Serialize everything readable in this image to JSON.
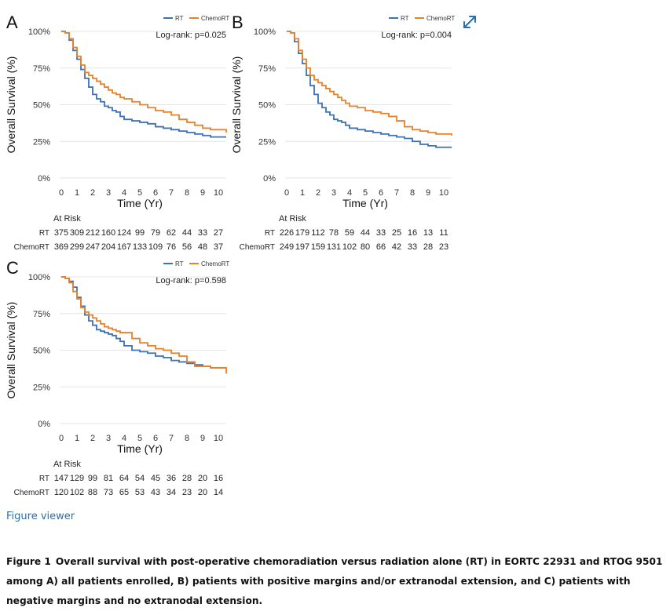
{
  "figure_viewer_label": "Figure viewer",
  "caption": {
    "label": "Figure 1",
    "text": "Overall survival with post-operative chemoradiation versus radiation alone (RT) in EORTC 22931 and RTOG 9501 among A) all patients enrolled, B) patients with positive margins and/or extranodal extension, and C) patients with negative margins and no extranodal extension."
  },
  "colors": {
    "rt": "#3d72b4",
    "chemort": "#e8822a"
  },
  "expand_icon": "expand-arrows-icon",
  "chart_data": [
    {
      "type": "line",
      "panel": "A",
      "title": "",
      "xlabel": "Time (Yr)",
      "ylabel": "Overall Survival (%)",
      "xlim": [
        0,
        10
      ],
      "ylim": [
        0,
        100
      ],
      "x_ticks": [
        "0",
        "1",
        "2",
        "3",
        "4",
        "5",
        "6",
        "7",
        "8",
        "9",
        "10"
      ],
      "y_ticks": [
        "0%",
        "25%",
        "50%",
        "75%",
        "100%"
      ],
      "legend": [
        "RT",
        "ChemoRT"
      ],
      "legend_position": "top-right",
      "annotation": "Log-rank: p=0.025",
      "series": [
        {
          "name": "RT",
          "x": [
            0,
            0.25,
            0.5,
            0.75,
            1,
            1.25,
            1.5,
            1.75,
            2,
            2.25,
            2.5,
            2.75,
            3,
            3.25,
            3.5,
            3.75,
            4,
            4.5,
            5,
            5.5,
            6,
            6.5,
            7,
            7.5,
            8,
            8.5,
            9,
            9.5,
            10.5
          ],
          "values": [
            100,
            99,
            94,
            87,
            81,
            74,
            68,
            62,
            57,
            54,
            52,
            49,
            48,
            46,
            45,
            42,
            40,
            39,
            38,
            37,
            35,
            34,
            33,
            32,
            31,
            30,
            29,
            28,
            28
          ]
        },
        {
          "name": "ChemoRT",
          "x": [
            0,
            0.25,
            0.5,
            0.75,
            1,
            1.25,
            1.5,
            1.75,
            2,
            2.25,
            2.5,
            2.75,
            3,
            3.25,
            3.5,
            3.75,
            4,
            4.5,
            5,
            5.5,
            6,
            6.5,
            7,
            7.5,
            8,
            8.5,
            9,
            9.5,
            10.5
          ],
          "values": [
            100,
            99,
            95,
            89,
            83,
            77,
            72,
            70,
            68,
            66,
            64,
            62,
            60,
            58,
            57,
            55,
            54,
            52,
            50,
            48,
            46,
            45,
            43,
            40,
            38,
            36,
            34,
            33,
            31
          ]
        }
      ],
      "at_risk": {
        "title": "At Risk",
        "rows": [
          {
            "label": "RT",
            "values": [
              "375",
              "309",
              "212",
              "160",
              "124",
              "99",
              "79",
              "62",
              "44",
              "33",
              "27"
            ]
          },
          {
            "label": "ChemoRT",
            "values": [
              "369",
              "299",
              "247",
              "204",
              "167",
              "133",
              "109",
              "76",
              "56",
              "48",
              "37"
            ]
          }
        ]
      }
    },
    {
      "type": "line",
      "panel": "B",
      "title": "",
      "xlabel": "Time (Yr)",
      "ylabel": "Overall Survival (%)",
      "xlim": [
        0,
        10
      ],
      "ylim": [
        0,
        100
      ],
      "x_ticks": [
        "0",
        "1",
        "2",
        "3",
        "4",
        "5",
        "6",
        "7",
        "8",
        "9",
        "10"
      ],
      "y_ticks": [
        "0%",
        "25%",
        "50%",
        "75%",
        "100%"
      ],
      "legend": [
        "RT",
        "ChemoRT"
      ],
      "legend_position": "top-right",
      "annotation": "Log-rank: p=0.004",
      "series": [
        {
          "name": "RT",
          "x": [
            0,
            0.25,
            0.5,
            0.75,
            1,
            1.25,
            1.5,
            1.75,
            2,
            2.25,
            2.5,
            2.75,
            3,
            3.25,
            3.5,
            3.75,
            4,
            4.5,
            5,
            5.5,
            6,
            6.5,
            7,
            7.5,
            8,
            8.5,
            9,
            9.5,
            10.5
          ],
          "values": [
            100,
            99,
            93,
            85,
            78,
            70,
            63,
            57,
            51,
            48,
            45,
            43,
            40,
            39,
            38,
            36,
            34,
            33,
            32,
            31,
            30,
            29,
            28,
            27,
            25,
            23,
            22,
            21,
            21
          ]
        },
        {
          "name": "ChemoRT",
          "x": [
            0,
            0.25,
            0.5,
            0.75,
            1,
            1.25,
            1.5,
            1.75,
            2,
            2.25,
            2.5,
            2.75,
            3,
            3.25,
            3.5,
            3.75,
            4,
            4.5,
            5,
            5.5,
            6,
            6.5,
            7,
            7.5,
            8,
            8.5,
            9,
            9.5,
            10.5
          ],
          "values": [
            100,
            99,
            95,
            87,
            81,
            75,
            70,
            67,
            65,
            63,
            61,
            59,
            57,
            55,
            53,
            51,
            49,
            48,
            46,
            45,
            44,
            42,
            39,
            35,
            33,
            32,
            31,
            30,
            29
          ]
        }
      ],
      "at_risk": {
        "title": "At Risk",
        "rows": [
          {
            "label": "RT",
            "values": [
              "226",
              "179",
              "112",
              "78",
              "59",
              "44",
              "33",
              "25",
              "16",
              "13",
              "11"
            ]
          },
          {
            "label": "ChemoRT",
            "values": [
              "249",
              "197",
              "159",
              "131",
              "102",
              "80",
              "66",
              "42",
              "33",
              "28",
              "23"
            ]
          }
        ]
      }
    },
    {
      "type": "line",
      "panel": "C",
      "title": "",
      "xlabel": "Time (Yr)",
      "ylabel": "Overall Survival (%)",
      "xlim": [
        0,
        10
      ],
      "ylim": [
        0,
        100
      ],
      "x_ticks": [
        "0",
        "1",
        "2",
        "3",
        "4",
        "5",
        "6",
        "7",
        "8",
        "9",
        "10"
      ],
      "y_ticks": [
        "0%",
        "25%",
        "50%",
        "75%",
        "100%"
      ],
      "legend": [
        "RT",
        "ChemoRT"
      ],
      "legend_position": "top-right",
      "annotation": "Log-rank: p=0.598",
      "series": [
        {
          "name": "RT",
          "x": [
            0,
            0.25,
            0.5,
            0.75,
            1,
            1.25,
            1.5,
            1.75,
            2,
            2.25,
            2.5,
            2.75,
            3,
            3.25,
            3.5,
            3.75,
            4,
            4.5,
            5,
            5.5,
            6,
            6.5,
            7,
            7.5,
            8,
            8.5,
            9,
            9.5,
            10.5
          ],
          "values": [
            100,
            99,
            97,
            93,
            86,
            80,
            74,
            70,
            67,
            64,
            63,
            62,
            61,
            60,
            58,
            56,
            53,
            50,
            49,
            48,
            46,
            45,
            43,
            42,
            41,
            40,
            39,
            38,
            38
          ]
        },
        {
          "name": "ChemoRT",
          "x": [
            0,
            0.25,
            0.5,
            0.75,
            1,
            1.25,
            1.5,
            1.75,
            2,
            2.25,
            2.5,
            2.75,
            3,
            3.25,
            3.5,
            3.75,
            4,
            4.5,
            5,
            5.5,
            6,
            6.5,
            7,
            7.5,
            8,
            8.5,
            9,
            9.5,
            10.5
          ],
          "values": [
            100,
            99,
            96,
            90,
            85,
            79,
            76,
            74,
            72,
            70,
            68,
            66,
            65,
            64,
            63,
            62,
            62,
            58,
            55,
            53,
            51,
            50,
            48,
            46,
            42,
            39,
            39,
            38,
            34
          ]
        }
      ],
      "at_risk": {
        "title": "At Risk",
        "rows": [
          {
            "label": "RT",
            "values": [
              "147",
              "129",
              "99",
              "81",
              "64",
              "54",
              "45",
              "36",
              "28",
              "20",
              "16"
            ]
          },
          {
            "label": "ChemoRT",
            "values": [
              "120",
              "102",
              "88",
              "73",
              "65",
              "53",
              "43",
              "34",
              "23",
              "20",
              "14"
            ]
          }
        ]
      }
    }
  ]
}
